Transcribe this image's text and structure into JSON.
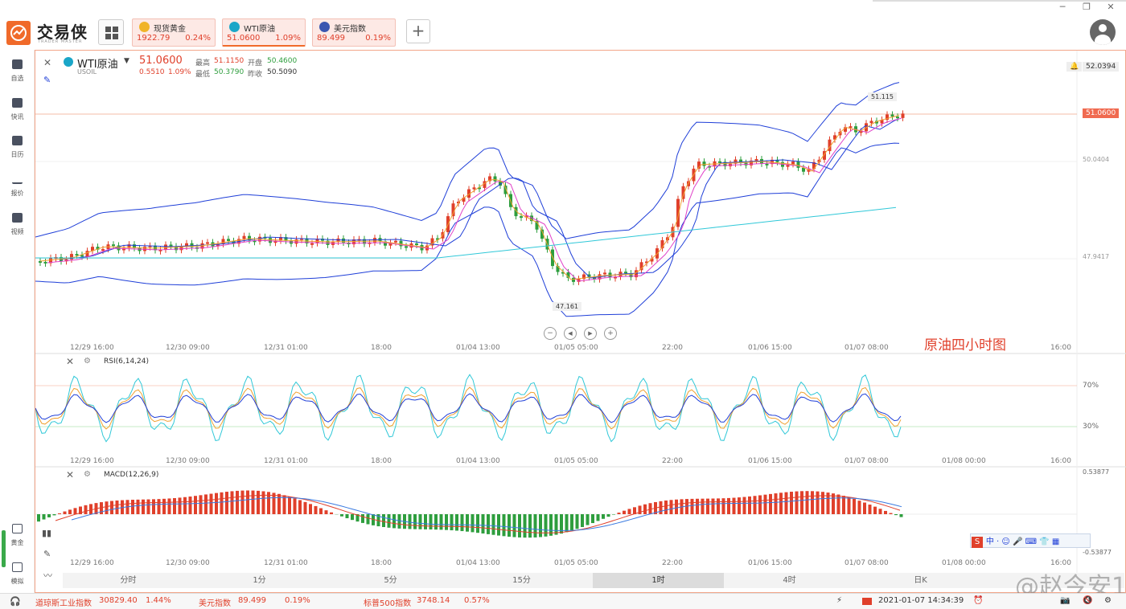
{
  "app": {
    "logo_text": "交易侠",
    "logo_sub": "TRADER MASTER",
    "colors": {
      "accent": "#f06a2a",
      "up": "#e0402b",
      "down": "#2e9e3e",
      "boll": "#1f3fd8",
      "ma_pink": "#e040c8",
      "ma_orange": "#f0a030",
      "ma_cyan": "#30c8d8"
    }
  },
  "quote_tabs": [
    {
      "name": "现货黄金",
      "price": "1922.79",
      "change": "0.24%",
      "icon": "gold-coin-icon",
      "icon_color": "#f0b428"
    },
    {
      "name": "WTI原油",
      "price": "51.0600",
      "change": "1.09%",
      "icon": "oil-drop-icon",
      "icon_color": "#1aa6c8"
    },
    {
      "name": "美元指数",
      "price": "89.499",
      "change": "0.19%",
      "icon": "us-flag-icon",
      "icon_color": "#3a56b0"
    }
  ],
  "sidebar": {
    "items": [
      {
        "label": "自选",
        "icon": "bookmark-plus-icon"
      },
      {
        "label": "快讯",
        "icon": "news-icon"
      },
      {
        "label": "日历",
        "icon": "calendar-icon"
      },
      {
        "label": "报价",
        "icon": "trend-line-icon"
      },
      {
        "label": "视频",
        "icon": "play-video-icon"
      }
    ],
    "bottom_items": [
      {
        "label": "黄金",
        "icon": "gold-calculator-icon"
      },
      {
        "label": "模拟",
        "icon": "wallet-icon"
      }
    ]
  },
  "instrument": {
    "name": "WTI原油",
    "code": "USOIL",
    "price": "51.0600",
    "change": "0.5510",
    "change_pct": "1.09%",
    "high_label": "最高",
    "high": "51.1150",
    "open_label": "开盘",
    "open": "50.4600",
    "low_label": "最低",
    "low": "50.3790",
    "prev_label": "昨收",
    "prev": "50.5090",
    "alert_price": "52.0394"
  },
  "main_panel": {
    "price_axis": [
      "50.0404",
      "47.9417"
    ],
    "current_price_tag": "51.0600",
    "high_marker": "51.115",
    "low_marker": "47.161",
    "overlay_text": "原油四小时图",
    "time_labels": [
      "12/29 16:00",
      "12/30 09:00",
      "12/31 01:00",
      "18:00",
      "01/04 13:00",
      "01/05 05:00",
      "22:00",
      "01/06 15:00",
      "01/07 08:00",
      "16:00"
    ]
  },
  "rsi_panel": {
    "title": "RSI(6,14,24)",
    "levels": [
      "70%",
      "30%"
    ],
    "time_labels": [
      "12/29 16:00",
      "12/30 09:00",
      "12/31 01:00",
      "18:00",
      "01/04 13:00",
      "01/05 05:00",
      "22:00",
      "01/06 15:00",
      "01/07 08:00",
      "01/08 00:00",
      "16:00"
    ]
  },
  "macd_panel": {
    "title": "MACD(12,26,9)",
    "axis_top": "0.53877",
    "axis_bottom": "-0.53877",
    "time_labels": [
      "12/29 16:00",
      "12/30 09:00",
      "12/31 01:00",
      "18:00",
      "01/04 13:00",
      "01/05 05:00",
      "22:00",
      "01/06 15:00",
      "01/07 08:00",
      "01/08 00:00",
      "16:00"
    ]
  },
  "period_tabs": [
    "分时",
    "1分",
    "5分",
    "15分",
    "1时",
    "4时",
    "日K"
  ],
  "active_period": "1时",
  "footer": {
    "tickers": [
      {
        "name": "道琼斯工业指数",
        "value": "30829.40",
        "change": "1.44%"
      },
      {
        "name": "美元指数",
        "value": "89.499",
        "change": "0.19%"
      },
      {
        "name": "标普500指数",
        "value": "3748.14",
        "change": "0.57%"
      }
    ],
    "datetime": "2021-01-07 14:34:39"
  },
  "watermark": "@赵今安1"
}
